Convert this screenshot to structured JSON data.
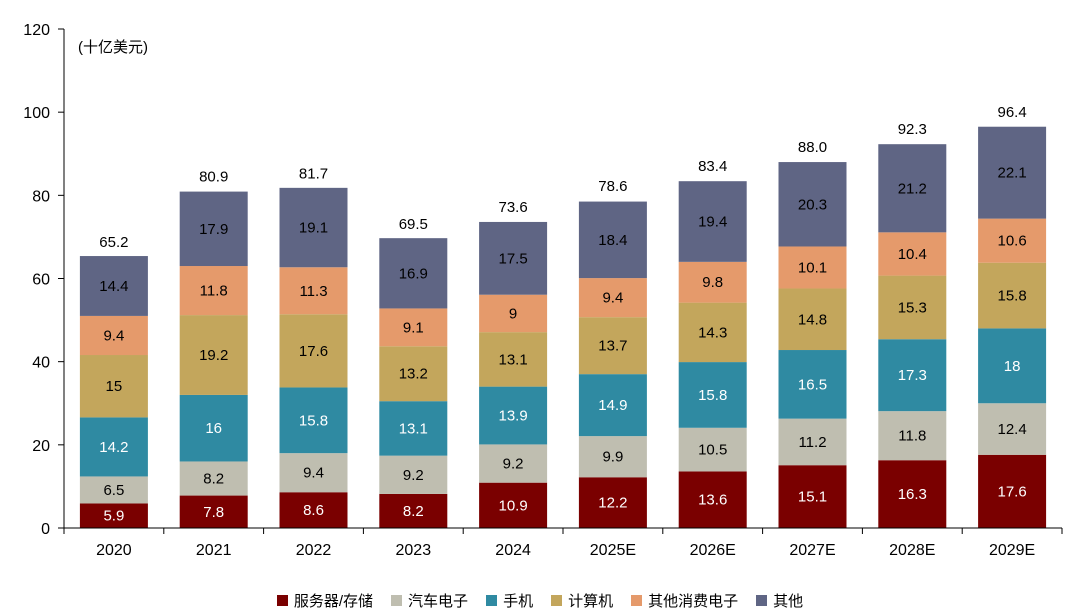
{
  "chart_data": {
    "type": "bar",
    "stacked": true,
    "unit_label": "(十亿美元)",
    "categories": [
      "2020",
      "2021",
      "2022",
      "2023",
      "2024",
      "2025E",
      "2026E",
      "2027E",
      "2028E",
      "2029E"
    ],
    "totals": [
      "65.2",
      "80.9",
      "81.7",
      "69.5",
      "73.6",
      "78.6",
      "83.4",
      "88.0",
      "92.3",
      "96.4"
    ],
    "ylim": [
      0,
      120
    ],
    "yticks": [
      0,
      20,
      40,
      60,
      80,
      100,
      120
    ],
    "legend_position": "bottom",
    "series": [
      {
        "name": "服务器/存储",
        "color": "#7a0000",
        "label_color": "#ffffff",
        "values": [
          5.9,
          7.8,
          8.6,
          8.2,
          10.9,
          12.2,
          13.6,
          15.1,
          16.3,
          17.6
        ]
      },
      {
        "name": "汽车电子",
        "color": "#bfbeb0",
        "label_color": "#000000",
        "values": [
          6.5,
          8.2,
          9.4,
          9.2,
          9.2,
          9.9,
          10.5,
          11.2,
          11.8,
          12.4
        ]
      },
      {
        "name": "手机",
        "color": "#2f8aa2",
        "label_color": "#ffffff",
        "values": [
          14.2,
          16,
          15.8,
          13.1,
          13.9,
          14.9,
          15.8,
          16.5,
          17.3,
          18
        ]
      },
      {
        "name": "计算机",
        "color": "#c3a65c",
        "label_color": "#000000",
        "values": [
          15,
          19.2,
          17.6,
          13.2,
          13.1,
          13.7,
          14.3,
          14.8,
          15.3,
          15.8
        ]
      },
      {
        "name": "其他消费电子",
        "color": "#e59a6b",
        "label_color": "#000000",
        "values": [
          9.4,
          11.8,
          11.3,
          9.1,
          9,
          9.4,
          9.8,
          10.1,
          10.4,
          10.6
        ]
      },
      {
        "name": "其他",
        "color": "#5f6584",
        "label_color": "#000000",
        "values": [
          14.4,
          17.9,
          19.1,
          16.9,
          17.5,
          18.4,
          19.4,
          20.3,
          21.2,
          22.1
        ]
      }
    ]
  }
}
